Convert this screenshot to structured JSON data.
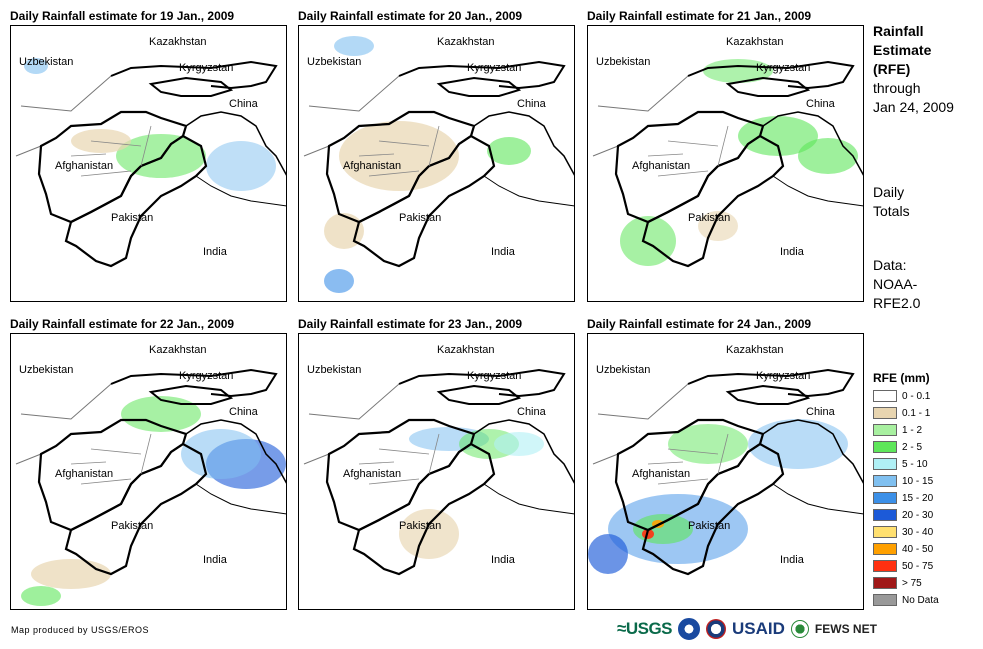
{
  "panels": [
    {
      "title": "Daily Rainfall estimate for 19 Jan., 2009"
    },
    {
      "title": "Daily Rainfall estimate for 20 Jan., 2009"
    },
    {
      "title": "Daily Rainfall estimate for 21 Jan., 2009"
    },
    {
      "title": "Daily Rainfall estimate for 22 Jan., 2009"
    },
    {
      "title": "Daily Rainfall estimate for 23 Jan., 2009"
    },
    {
      "title": "Daily Rainfall estimate for 24 Jan., 2009"
    }
  ],
  "map_labels": {
    "kazakhstan": "Kazakhstan",
    "uzbekistan": "Uzbekistan",
    "kyrgyzstan": "Kyrgyzstan",
    "china": "China",
    "afghanistan": "Afghanistan",
    "pakistan": "Pakistan",
    "india": "India"
  },
  "sidebar": {
    "title_line1": "Rainfall",
    "title_line2": "Estimate",
    "title_line3": "(RFE)",
    "through": "through",
    "date": "Jan 24, 2009",
    "daily1": "Daily",
    "daily2": "Totals",
    "data1": "Data:",
    "data2": "NOAA-",
    "data3": "RFE2.0"
  },
  "legend": {
    "title": "RFE (mm)",
    "items": [
      {
        "label": "0 - 0.1",
        "color": "#ffffff"
      },
      {
        "label": "0.1 - 1",
        "color": "#e8d5b0"
      },
      {
        "label": "1 - 2",
        "color": "#a8f0a0"
      },
      {
        "label": "2 - 5",
        "color": "#5ee65a"
      },
      {
        "label": "5 - 10",
        "color": "#b0f0f5"
      },
      {
        "label": "10 - 15",
        "color": "#80c0f0"
      },
      {
        "label": "15 - 20",
        "color": "#3c90e8"
      },
      {
        "label": "20 - 30",
        "color": "#1c5ad8"
      },
      {
        "label": "30 - 40",
        "color": "#ffe070"
      },
      {
        "label": "40 - 50",
        "color": "#ffa000"
      },
      {
        "label": "50 - 75",
        "color": "#ff3010"
      },
      {
        "label": "> 75",
        "color": "#a01818"
      },
      {
        "label": "No Data",
        "color": "#999999"
      }
    ]
  },
  "footer": {
    "credit": "Map produced by USGS/EROS"
  },
  "logos": {
    "usgs": "≈USGS",
    "usaid": "USAID",
    "fews": "FEWS NET"
  }
}
